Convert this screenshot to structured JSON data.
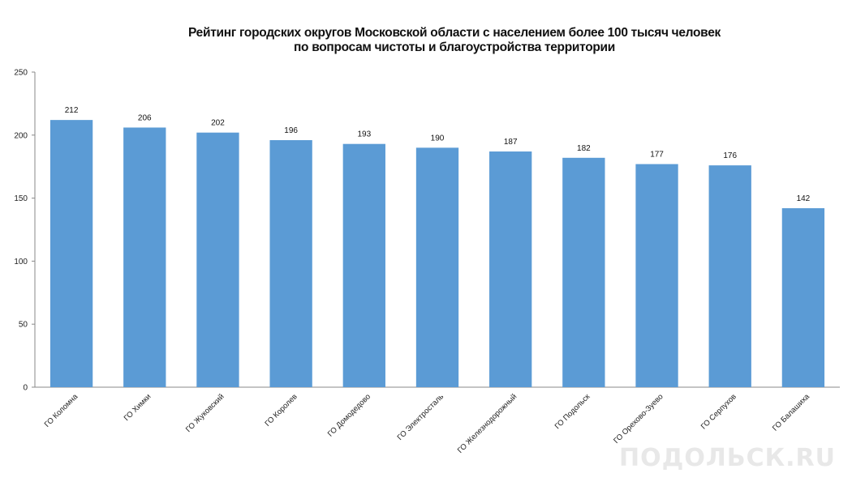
{
  "watermark": "ПОДОЛЬСК.RU",
  "chart_data": {
    "type": "bar",
    "title_lines": [
      "Рейтинг городских округов Московской области с населением более 100 тысяч человек",
      "по вопросам чистоты и благоустройства территории"
    ],
    "categories": [
      "ГО Коломна",
      "ГО Химки",
      "ГО Жуковский",
      "ГО Королев",
      "ГО Домодедово",
      "ГО Электросталь",
      "ГО Железнодорожный",
      "ГО Подольск",
      "ГО Орехово-Зуево",
      "ГО Серпухов",
      "ГО Балашиха"
    ],
    "values": [
      212,
      206,
      202,
      196,
      193,
      190,
      187,
      182,
      177,
      176,
      142
    ],
    "ylim": [
      0,
      250
    ],
    "yticks": [
      0,
      50,
      100,
      150,
      200,
      250
    ],
    "grid": false,
    "bar_color": "#5b9bd5"
  }
}
